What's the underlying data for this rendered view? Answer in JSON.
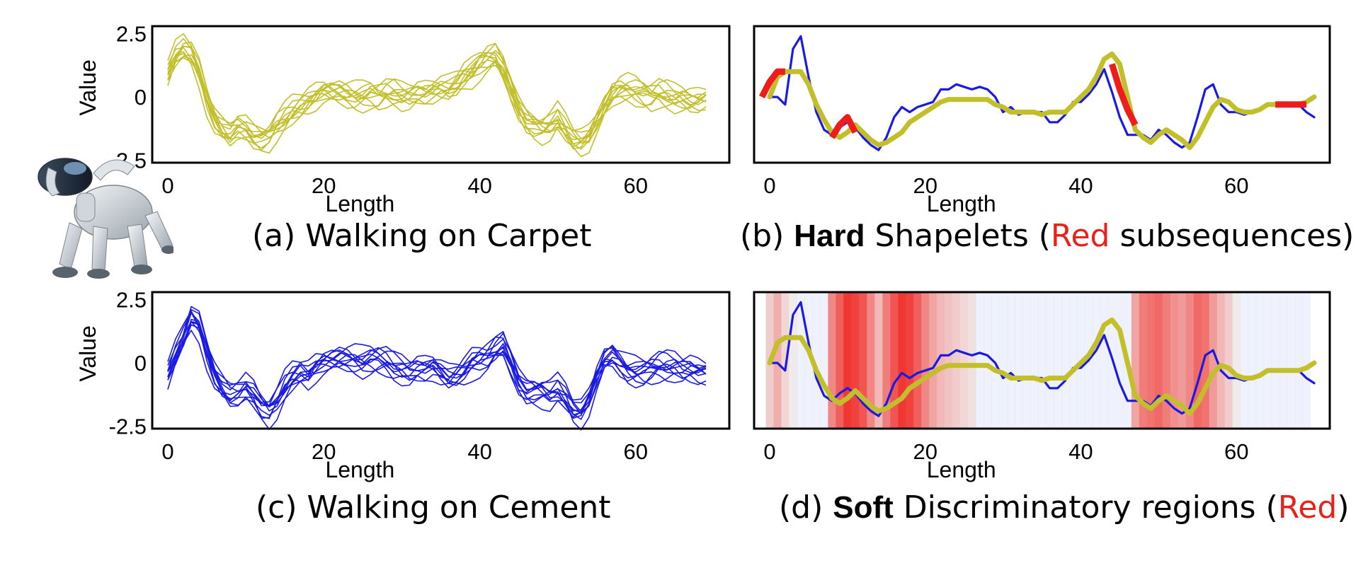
{
  "captions": {
    "a": {
      "text": "(a) Walking on Carpet"
    },
    "b": {
      "pre": "(b) ",
      "bold": "Hard",
      "mid": " Shapelets (",
      "red": "Red",
      "post": " subsequences)"
    },
    "c": {
      "text": "(c) Walking on Cement"
    },
    "d": {
      "pre": "(d) ",
      "bold": "Soft",
      "mid": " Discriminatory regions (",
      "red": "Red",
      "post": ")"
    }
  },
  "colors": {
    "carpet": "#c2bf2b",
    "cement": "#1a1ae0",
    "shapelet": "#ee1c1c",
    "frame": "#000000"
  },
  "icons": {
    "robot": "robot-dog-icon"
  },
  "chart_data": [
    {
      "id": "a",
      "type": "line",
      "xlabel": "Length",
      "ylabel": "Value",
      "xticks": [
        0,
        20,
        40,
        60
      ],
      "yticks": [
        2.5,
        0,
        -2.5
      ],
      "ytick_labels": [
        "2.5",
        "0",
        "-2.5"
      ],
      "xlim": [
        -2,
        72
      ],
      "ylim": [
        -2.6,
        2.8
      ],
      "color": "#c2bf2b",
      "base": [
        0.9,
        1.6,
        1.9,
        1.7,
        1.0,
        -0.1,
        -0.9,
        -1.3,
        -1.5,
        -1.2,
        -1.3,
        -1.6,
        -1.7,
        -1.6,
        -1.2,
        -0.9,
        -0.6,
        -0.4,
        -0.2,
        0.0,
        0.2,
        0.2,
        0.2,
        0.1,
        0.0,
        0.0,
        0.1,
        0.0,
        0.1,
        0.1,
        0.0,
        0.0,
        0.1,
        0.1,
        0.2,
        0.3,
        0.3,
        0.5,
        0.8,
        1.0,
        1.3,
        1.5,
        1.6,
        1.1,
        0.3,
        -0.5,
        -1.0,
        -1.2,
        -1.3,
        -1.2,
        -0.9,
        -1.3,
        -1.7,
        -1.8,
        -1.6,
        -1.0,
        -0.4,
        0.1,
        0.3,
        0.3,
        0.2,
        0.1,
        0.0,
        0.1,
        0.0,
        -0.1,
        -0.1,
        -0.2,
        -0.2,
        -0.1
      ],
      "variants": [
        [
          0,
          0
        ],
        [
          0.3,
          0.4
        ],
        [
          -0.3,
          -0.35
        ],
        [
          0.15,
          0.65
        ],
        [
          -0.2,
          0.9
        ],
        [
          0.4,
          -0.55
        ],
        [
          -0.45,
          0.2
        ],
        [
          0.1,
          -0.8
        ],
        [
          0.25,
          1.2
        ],
        [
          -0.15,
          -1.1
        ],
        [
          0.5,
          0.1
        ]
      ]
    },
    {
      "id": "b",
      "type": "line",
      "xlabel": "Length",
      "xticks": [
        0,
        20,
        40,
        60
      ],
      "xlim": [
        -2,
        72
      ],
      "ylim": [
        -2.6,
        2.8
      ],
      "series": [
        {
          "color": "#1a1ae0",
          "values": [
            0.0,
            0.0,
            -0.3,
            1.9,
            2.4,
            0.8,
            -0.6,
            -1.3,
            -1.5,
            -1.2,
            -1.0,
            -1.2,
            -1.6,
            -1.9,
            -2.1,
            -1.6,
            -0.8,
            -0.4,
            -0.6,
            -0.4,
            -0.3,
            -0.2,
            0.3,
            0.3,
            0.5,
            0.4,
            0.3,
            0.4,
            0.3,
            0.0,
            -0.6,
            -0.4,
            -0.7,
            -0.6,
            -0.6,
            -0.6,
            -1.0,
            -1.0,
            -0.7,
            -0.2,
            -0.2,
            0.1,
            0.5,
            1.1,
            0.2,
            -0.8,
            -1.5,
            -1.5,
            -1.5,
            -1.7,
            -1.3,
            -1.5,
            -1.8,
            -2.0,
            -1.8,
            -0.8,
            0.3,
            0.5,
            -0.3,
            -0.6,
            -0.6,
            -0.7,
            -0.6,
            -0.5,
            -0.3,
            -0.3,
            -0.3,
            -0.3,
            -0.3,
            -0.6,
            -0.8
          ]
        },
        {
          "color": "#c2bf2b",
          "values": [
            0.0,
            0.8,
            1.0,
            1.0,
            1.0,
            0.5,
            -0.3,
            -0.9,
            -1.4,
            -1.6,
            -1.4,
            -1.1,
            -1.4,
            -1.7,
            -1.9,
            -1.8,
            -1.6,
            -1.4,
            -1.0,
            -0.8,
            -0.6,
            -0.4,
            -0.2,
            -0.1,
            -0.1,
            -0.1,
            -0.1,
            -0.1,
            -0.1,
            -0.3,
            -0.4,
            -0.6,
            -0.6,
            -0.6,
            -0.6,
            -0.7,
            -0.6,
            -0.6,
            -0.6,
            -0.3,
            0.0,
            0.3,
            0.8,
            1.5,
            1.7,
            1.3,
            0.0,
            -1.3,
            -1.6,
            -1.8,
            -1.5,
            -1.3,
            -1.5,
            -1.7,
            -2.0,
            -1.6,
            -1.0,
            -0.4,
            -0.1,
            -0.2,
            -0.5,
            -0.6,
            -0.6,
            -0.5,
            -0.3,
            -0.3,
            -0.3,
            -0.3,
            -0.3,
            -0.2,
            0.0
          ]
        }
      ],
      "shapelets": [
        {
          "color": "#ee1c1c",
          "x": [
            -1,
            0,
            1,
            2
          ],
          "y": [
            0.0,
            0.6,
            1.0,
            1.0
          ]
        },
        {
          "color": "#ee1c1c",
          "x": [
            8,
            9,
            10,
            11
          ],
          "y": [
            -1.6,
            -1.1,
            -0.8,
            -1.4
          ]
        },
        {
          "color": "#ee1c1c",
          "x": [
            44,
            45,
            46,
            47
          ],
          "y": [
            1.3,
            0.3,
            -0.5,
            -1.1
          ]
        },
        {
          "color": "#ee1c1c",
          "x": [
            65,
            66,
            67,
            68,
            69
          ],
          "y": [
            -0.3,
            -0.3,
            -0.3,
            -0.3,
            -0.3
          ]
        }
      ]
    },
    {
      "id": "c",
      "type": "line",
      "xlabel": "Length",
      "ylabel": "Value",
      "xticks": [
        0,
        20,
        40,
        60
      ],
      "yticks": [
        2.5,
        0,
        -2.5
      ],
      "ytick_labels": [
        "2.5",
        "0",
        "-2.5"
      ],
      "xlim": [
        -2,
        72
      ],
      "ylim": [
        -2.6,
        2.8
      ],
      "color": "#1a1ae0",
      "base": [
        -0.5,
        0.3,
        1.0,
        1.8,
        1.5,
        0.4,
        -0.5,
        -1.0,
        -1.3,
        -1.2,
        -1.0,
        -1.3,
        -1.8,
        -2.0,
        -1.6,
        -1.0,
        -0.6,
        -0.4,
        -0.5,
        -0.2,
        0.0,
        0.1,
        0.2,
        0.2,
        0.1,
        0.0,
        0.1,
        0.1,
        0.0,
        -0.2,
        -0.3,
        -0.4,
        -0.3,
        -0.3,
        -0.2,
        -0.4,
        -0.6,
        -0.5,
        -0.3,
        0.0,
        0.1,
        0.2,
        0.5,
        0.7,
        0.0,
        -0.8,
        -1.2,
        -1.2,
        -1.2,
        -1.3,
        -1.1,
        -1.4,
        -1.9,
        -2.0,
        -1.5,
        -0.6,
        0.1,
        0.3,
        0.0,
        -0.3,
        -0.4,
        -0.4,
        -0.3,
        -0.2,
        -0.2,
        -0.2,
        -0.3,
        -0.3,
        -0.4,
        -0.4
      ],
      "variants": [
        [
          0,
          0
        ],
        [
          0.35,
          0.4
        ],
        [
          -0.35,
          -0.4
        ],
        [
          0.2,
          0.7
        ],
        [
          -0.25,
          0.95
        ],
        [
          0.45,
          -0.6
        ],
        [
          -0.5,
          0.25
        ],
        [
          0.1,
          -0.85
        ],
        [
          0.3,
          1.25
        ],
        [
          -0.15,
          -1.15
        ],
        [
          0.5,
          0.15
        ]
      ]
    },
    {
      "id": "d",
      "type": "line",
      "xlabel": "Length",
      "xticks": [
        0,
        20,
        40,
        60
      ],
      "xlim": [
        -2,
        72
      ],
      "ylim": [
        -2.6,
        2.8
      ],
      "series": [
        {
          "color": "#1a1ae0",
          "values": [
            0.0,
            0.0,
            -0.3,
            1.9,
            2.4,
            0.8,
            -0.6,
            -1.3,
            -1.5,
            -1.2,
            -1.0,
            -1.2,
            -1.6,
            -1.9,
            -2.1,
            -1.6,
            -0.8,
            -0.4,
            -0.6,
            -0.4,
            -0.3,
            -0.2,
            0.3,
            0.3,
            0.5,
            0.4,
            0.3,
            0.4,
            0.3,
            0.0,
            -0.6,
            -0.4,
            -0.7,
            -0.6,
            -0.6,
            -0.6,
            -1.0,
            -1.0,
            -0.7,
            -0.2,
            -0.2,
            0.1,
            0.5,
            1.1,
            0.2,
            -0.8,
            -1.5,
            -1.5,
            -1.5,
            -1.7,
            -1.3,
            -1.5,
            -1.8,
            -2.0,
            -1.8,
            -0.8,
            0.3,
            0.5,
            -0.3,
            -0.6,
            -0.6,
            -0.7,
            -0.6,
            -0.5,
            -0.3,
            -0.3,
            -0.3,
            -0.3,
            -0.3,
            -0.6,
            -0.8
          ]
        },
        {
          "color": "#c2bf2b",
          "values": [
            0.0,
            0.8,
            1.0,
            1.0,
            1.0,
            0.5,
            -0.3,
            -0.9,
            -1.4,
            -1.6,
            -1.4,
            -1.1,
            -1.4,
            -1.7,
            -1.9,
            -1.8,
            -1.6,
            -1.4,
            -1.0,
            -0.8,
            -0.6,
            -0.4,
            -0.2,
            -0.1,
            -0.1,
            -0.1,
            -0.1,
            -0.1,
            -0.1,
            -0.3,
            -0.4,
            -0.6,
            -0.6,
            -0.6,
            -0.6,
            -0.7,
            -0.6,
            -0.6,
            -0.6,
            -0.3,
            0.0,
            0.3,
            0.8,
            1.5,
            1.7,
            1.3,
            0.0,
            -1.3,
            -1.6,
            -1.8,
            -1.5,
            -1.3,
            -1.5,
            -1.7,
            -2.0,
            -1.6,
            -1.0,
            -0.4,
            -0.1,
            -0.2,
            -0.5,
            -0.6,
            -0.6,
            -0.5,
            -0.3,
            -0.3,
            -0.3,
            -0.3,
            -0.3,
            -0.2,
            0.0
          ]
        }
      ],
      "heat_weights": [
        0.2,
        0.35,
        0.15,
        0.05,
        0.0,
        0.0,
        0.0,
        0.0,
        0.55,
        0.75,
        0.95,
        0.9,
        0.8,
        0.55,
        0.3,
        0.6,
        0.8,
        0.95,
        0.9,
        0.75,
        0.55,
        0.4,
        0.3,
        0.25,
        0.2,
        0.15,
        0.1,
        0.0,
        0.0,
        0.0,
        0.0,
        0.0,
        0.0,
        0.0,
        0.0,
        0.0,
        0.0,
        0.0,
        0.0,
        0.0,
        0.0,
        0.0,
        0.0,
        0.0,
        0.0,
        0.0,
        0.0,
        0.4,
        0.6,
        0.65,
        0.7,
        0.6,
        0.5,
        0.45,
        0.55,
        0.7,
        0.65,
        0.45,
        0.3,
        0.2,
        0.05,
        0.0,
        0.0,
        0.0,
        0.0,
        0.0,
        0.0,
        0.0,
        0.0,
        0.0
      ]
    }
  ]
}
